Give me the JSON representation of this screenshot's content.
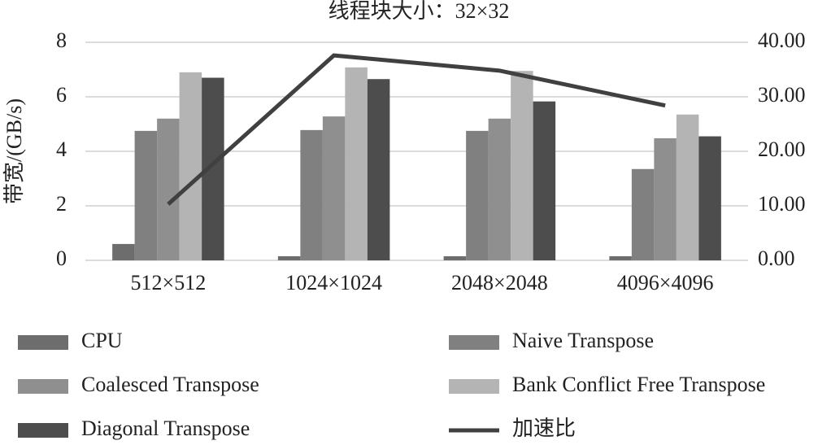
{
  "chart_data": {
    "type": "bar",
    "title": "线程块大小：32×32",
    "y_label": "带宽/(GB/s)",
    "categories": [
      "512×512",
      "1024×1024",
      "2048×2048",
      "4096×4096"
    ],
    "series": [
      {
        "name": "CPU",
        "color": "#6d6d6d",
        "values": [
          0.6,
          0.15,
          0.15,
          0.15
        ]
      },
      {
        "name": "Naive Transpose",
        "color": "#808080",
        "values": [
          4.75,
          4.78,
          4.75,
          3.35
        ]
      },
      {
        "name": "Coalesced Transpose",
        "color": "#8f8f8f",
        "values": [
          5.2,
          5.28,
          5.2,
          4.48
        ]
      },
      {
        "name": "Bank Conflict Free Transpose",
        "color": "#b4b4b4",
        "values": [
          6.9,
          7.08,
          6.95,
          5.35
        ]
      },
      {
        "name": "Diagonal Transpose",
        "color": "#4d4d4d",
        "values": [
          6.7,
          6.65,
          5.83,
          4.55
        ]
      },
      {
        "name": "加速比",
        "color": "#404040",
        "type": "line",
        "axis": "y2",
        "values": [
          10.3,
          37.6,
          34.8,
          28.4
        ]
      }
    ],
    "ylim": [
      0,
      8
    ],
    "yticks": [
      0,
      2,
      4,
      6,
      8
    ],
    "y2lim": [
      0,
      40
    ],
    "y2ticks": [
      {
        "value": 0,
        "label": "0.00"
      },
      {
        "value": 10,
        "label": "10.00"
      },
      {
        "value": 20,
        "label": "20.00"
      },
      {
        "value": 30,
        "label": "30.00"
      },
      {
        "value": 40,
        "label": "40.00"
      }
    ],
    "grid": true,
    "legend": "bottom"
  }
}
